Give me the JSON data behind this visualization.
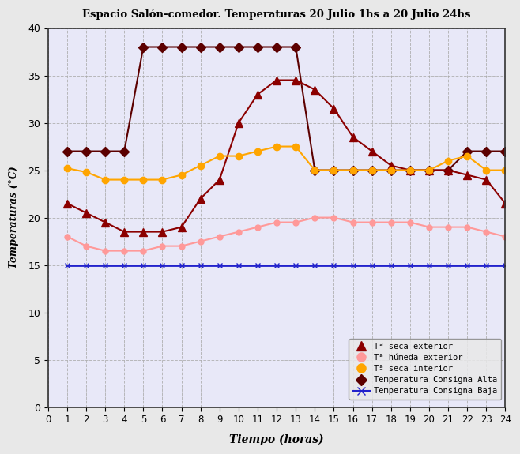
{
  "title": "Espacio Salón-comedor. Temperaturas 20 Julio 1hs a 20 Julio 24hs",
  "xlabel": "Tiempo (horas)",
  "ylabel": "Temperaturas (°C)",
  "x_ticks": [
    0,
    1,
    2,
    3,
    4,
    5,
    6,
    7,
    8,
    9,
    10,
    11,
    12,
    13,
    14,
    15,
    16,
    17,
    18,
    19,
    20,
    21,
    22,
    23,
    24
  ],
  "x_tick_labels": [
    "0",
    "1",
    "2",
    "3",
    "4",
    "5",
    "6",
    "7",
    "8",
    "9",
    "10",
    "11",
    "12",
    "13",
    "14",
    "15",
    "16",
    "17",
    "18",
    "19",
    "20",
    "21",
    "22",
    "23",
    "24"
  ],
  "ylim": [
    0,
    40
  ],
  "xlim": [
    0,
    24
  ],
  "y_ticks": [
    0,
    5,
    10,
    15,
    20,
    25,
    30,
    35,
    40
  ],
  "t_seca_exterior": {
    "x": [
      1,
      2,
      3,
      4,
      5,
      6,
      7,
      8,
      9,
      10,
      11,
      12,
      13,
      14,
      15,
      16,
      17,
      18,
      19,
      20,
      21,
      22,
      23,
      24
    ],
    "y": [
      21.5,
      20.5,
      19.5,
      18.5,
      18.5,
      18.5,
      19.0,
      22.0,
      24.0,
      30.0,
      33.0,
      34.5,
      34.5,
      33.5,
      31.5,
      28.5,
      27.0,
      25.5,
      25.0,
      25.0,
      25.0,
      24.5,
      24.0,
      21.5
    ],
    "color": "#8B0000",
    "marker": "^",
    "markersize": 7,
    "linewidth": 1.5,
    "label": "Tª seca exterior"
  },
  "t_humeda_exterior": {
    "x": [
      1,
      2,
      3,
      4,
      5,
      6,
      7,
      8,
      9,
      10,
      11,
      12,
      13,
      14,
      15,
      16,
      17,
      18,
      19,
      20,
      21,
      22,
      23,
      24
    ],
    "y": [
      18.0,
      17.0,
      16.5,
      16.5,
      16.5,
      17.0,
      17.0,
      17.5,
      18.0,
      18.5,
      19.0,
      19.5,
      19.5,
      20.0,
      20.0,
      19.5,
      19.5,
      19.5,
      19.5,
      19.0,
      19.0,
      19.0,
      18.5,
      18.0
    ],
    "color": "#FF9999",
    "marker": "o",
    "markersize": 5,
    "linewidth": 1.5,
    "label": "Tª húmeda exterior"
  },
  "t_seca_interior": {
    "x": [
      1,
      2,
      3,
      4,
      5,
      6,
      7,
      8,
      9,
      10,
      11,
      12,
      13,
      14,
      15,
      16,
      17,
      18,
      19,
      20,
      21,
      22,
      23,
      24
    ],
    "y": [
      25.2,
      24.8,
      24.0,
      24.0,
      24.0,
      24.0,
      24.5,
      25.5,
      26.5,
      26.5,
      27.0,
      27.5,
      27.5,
      25.0,
      25.0,
      25.0,
      25.0,
      25.0,
      25.0,
      25.0,
      26.0,
      26.5,
      25.0,
      25.0
    ],
    "color": "#FFA500",
    "marker": "o",
    "markersize": 6,
    "linewidth": 1.5,
    "label": "Tª seca interior"
  },
  "consigna_alta": {
    "x": [
      1,
      2,
      3,
      4,
      5,
      6,
      7,
      8,
      9,
      10,
      11,
      12,
      13,
      14,
      15,
      16,
      17,
      18,
      19,
      20,
      21,
      22,
      23,
      24
    ],
    "y": [
      27.0,
      27.0,
      27.0,
      27.0,
      38.0,
      38.0,
      38.0,
      38.0,
      38.0,
      38.0,
      38.0,
      38.0,
      38.0,
      25.0,
      25.0,
      25.0,
      25.0,
      25.0,
      25.0,
      25.0,
      25.0,
      27.0,
      27.0,
      27.0
    ],
    "color": "#5C0000",
    "marker": "D",
    "markersize": 6,
    "linewidth": 1.5,
    "label": "Temperatura Consigna Alta"
  },
  "consigna_baja": {
    "x": [
      1,
      2,
      3,
      4,
      5,
      6,
      7,
      8,
      9,
      10,
      11,
      12,
      13,
      14,
      15,
      16,
      17,
      18,
      19,
      20,
      21,
      22,
      23,
      24
    ],
    "y": [
      15.0,
      15.0,
      15.0,
      15.0,
      15.0,
      15.0,
      15.0,
      15.0,
      15.0,
      15.0,
      15.0,
      15.0,
      15.0,
      15.0,
      15.0,
      15.0,
      15.0,
      15.0,
      15.0,
      15.0,
      15.0,
      15.0,
      15.0,
      15.0
    ],
    "color": "#2222CC",
    "marker": "x",
    "markersize": 5,
    "linewidth": 2.0,
    "label": "Temperatura Consigna Baja"
  },
  "background_color": "#E8E8E8",
  "plot_bg_color": "#E8E8F8",
  "grid_color": "#AAAAAA",
  "border_color": "#333333"
}
